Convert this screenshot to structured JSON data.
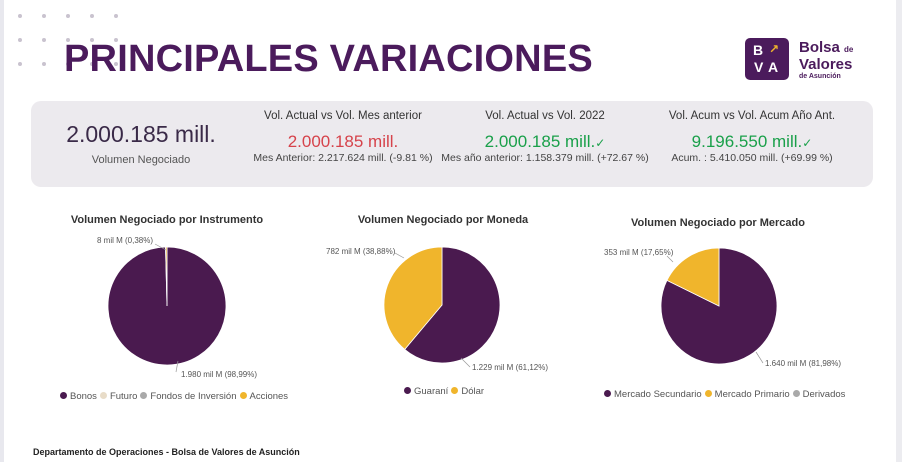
{
  "page": {
    "title": "PRINCIPALES VARIACIONES",
    "footer": "Departamento de Operaciones - Bolsa de Valores de Asunción"
  },
  "logo": {
    "letters": [
      "B",
      "V",
      "A"
    ],
    "line1": "Bolsa",
    "line1_small": "de",
    "line2": "Valores",
    "line3": "de Asunción",
    "color": "#4b1b5c",
    "accent": "#f0b52c"
  },
  "kpis": {
    "main": {
      "value": "2.000.185 mill.",
      "label": "Volumen Negociado"
    },
    "cards": [
      {
        "header": "Vol. Actual vs Vol. Mes anterior",
        "value": "2.000.185 mill.",
        "check": "",
        "sub": "Mes Anterior: 2.217.624 mill. (-9.81 %)",
        "status": "red"
      },
      {
        "header": "Vol. Actual vs Vol. 2022",
        "value": "2.000.185 mill.",
        "check": "✓",
        "sub": "Mes año anterior: 1.158.379 mill. (+72.67 %)",
        "status": "green"
      },
      {
        "header": "Vol. Acum vs Vol. Acum Año Ant.",
        "value": "9.196.550 mill.",
        "check": "✓",
        "sub": "Acum. : 5.410.050 mill. (+69.99 %)",
        "status": "green"
      }
    ]
  },
  "colors": {
    "purple": "#4a1a4f",
    "light": "#e8dcc8",
    "gray": "#a9a9a9",
    "yellow": "#f0b52c"
  },
  "chart_data": [
    {
      "type": "pie",
      "title": "Volumen Negociado por Instrumento",
      "legend_position": "bottom",
      "slices": [
        {
          "name": "Bonos",
          "value": 1980,
          "label": "1.980 mil M (98,99%)",
          "color": "#4a1a4f"
        },
        {
          "name": "Futuro",
          "value": 0,
          "label": "",
          "color": "#e8dcc8"
        },
        {
          "name": "Fondos de Inversión",
          "value": 0,
          "label": "",
          "color": "#a9a9a9"
        },
        {
          "name": "Acciones",
          "value": 8,
          "label": "8 mil M (0,38%)",
          "color": "#f0b52c"
        }
      ]
    },
    {
      "type": "pie",
      "title": "Volumen Negociado por Moneda",
      "legend_position": "bottom",
      "slices": [
        {
          "name": "Guaraní",
          "value": 1229,
          "label": "1.229 mil M (61,12%)",
          "color": "#4a1a4f"
        },
        {
          "name": "Dólar",
          "value": 782,
          "label": "782 mil M (38,88%)",
          "color": "#f0b52c"
        }
      ]
    },
    {
      "type": "pie",
      "title": "Volumen Negociado por Mercado",
      "legend_position": "bottom",
      "slices": [
        {
          "name": "Mercado Secundario",
          "value": 1640,
          "label": "1.640 mil M (81,98%)",
          "color": "#4a1a4f"
        },
        {
          "name": "Mercado Primario",
          "value": 353,
          "label": "353 mil M (17,65%)",
          "color": "#f0b52c"
        },
        {
          "name": "Derivados",
          "value": 0,
          "label": "",
          "color": "#a9a9a9"
        }
      ]
    }
  ]
}
